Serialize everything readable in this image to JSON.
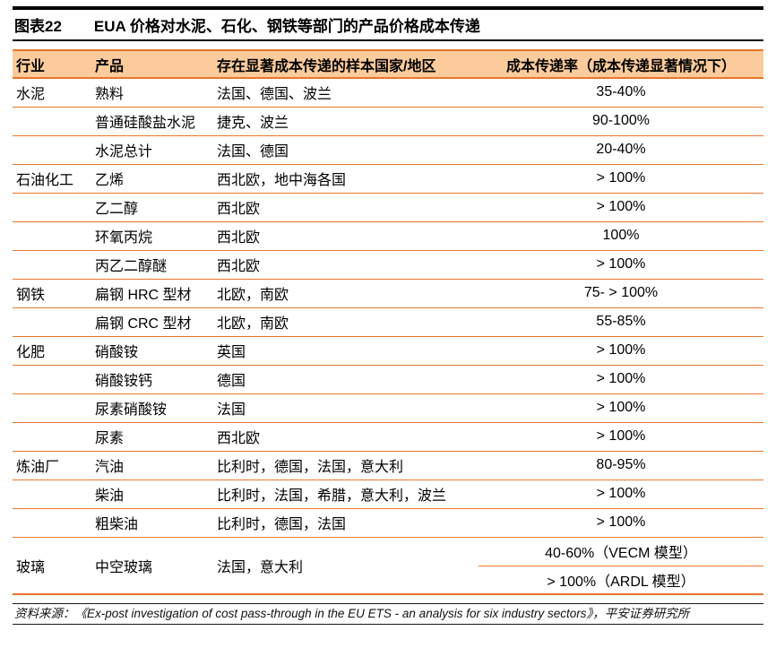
{
  "figure": {
    "tag": "图表22",
    "title": "EUA 价格对水泥、石化、钢铁等部门的产品价格成本传递"
  },
  "colors": {
    "accent_orange": "#E8762C",
    "header_bg": "#FBCB9B",
    "rule_black": "#000000"
  },
  "table": {
    "columns": {
      "industry": "行业",
      "product": "产品",
      "regions": "存在显著成本传递的样本国家/地区",
      "rate": "成本传递率（成本传递显著情况下）"
    },
    "rows": [
      {
        "industry": "水泥",
        "product": "熟料",
        "regions": "法国、德国、波兰",
        "rate": "35-40%"
      },
      {
        "industry": "",
        "product": "普通硅酸盐水泥",
        "regions": "捷克、波兰",
        "rate": "90-100%"
      },
      {
        "industry": "",
        "product": "水泥总计",
        "regions": "法国、德国",
        "rate": "20-40%"
      },
      {
        "industry": "石油化工",
        "product": "乙烯",
        "regions": "西北欧，地中海各国",
        "rate": "> 100%"
      },
      {
        "industry": "",
        "product": "乙二醇",
        "regions": "西北欧",
        "rate": "> 100%"
      },
      {
        "industry": "",
        "product": "环氧丙烷",
        "regions": "西北欧",
        "rate": "100%"
      },
      {
        "industry": "",
        "product": "丙乙二醇醚",
        "regions": "西北欧",
        "rate": "> 100%"
      },
      {
        "industry": "钢铁",
        "product": "扁钢 HRC 型材",
        "regions": "北欧，南欧",
        "rate": "75- > 100%"
      },
      {
        "industry": "",
        "product": "扁钢 CRC 型材",
        "regions": "北欧，南欧",
        "rate": "55-85%"
      },
      {
        "industry": "化肥",
        "product": "硝酸铵",
        "regions": "英国",
        "rate": "> 100%"
      },
      {
        "industry": "",
        "product": "硝酸铵钙",
        "regions": "德国",
        "rate": "> 100%"
      },
      {
        "industry": "",
        "product": "尿素硝酸铵",
        "regions": "法国",
        "rate": "> 100%"
      },
      {
        "industry": "",
        "product": "尿素",
        "regions": "西北欧",
        "rate": "> 100%"
      },
      {
        "industry": "炼油厂",
        "product": "汽油",
        "regions": "比利时，德国，法国，意大利",
        "rate": "80-95%"
      },
      {
        "industry": "",
        "product": "柴油",
        "regions": "比利时，法国，希腊，意大利，波兰",
        "rate": "> 100%"
      },
      {
        "industry": "",
        "product": "粗柴油",
        "regions": "比利时，德国，法国",
        "rate": "> 100%"
      }
    ],
    "glass_row": {
      "industry": "玻璃",
      "product": "中空玻璃",
      "regions": "法国，意大利",
      "rate_vecm": "40-60%（VECM 模型）",
      "rate_ardl": "> 100%（ARDL 模型）"
    }
  },
  "source": "资料来源：《Ex-post investigation of cost pass-through in the EU ETS - an analysis for six industry sectors》，平安证券研究所"
}
